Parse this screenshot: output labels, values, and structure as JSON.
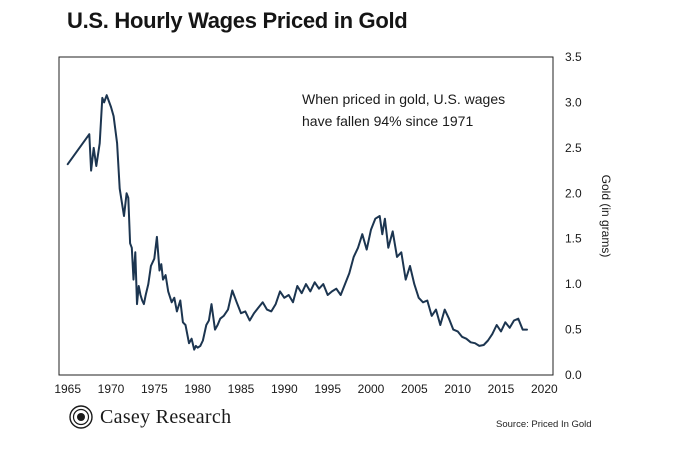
{
  "title": "U.S. Hourly Wages Priced in Gold",
  "annotation": {
    "line1": "When priced in gold, U.S. wages",
    "line2": "have fallen 94% since 1971"
  },
  "brand": {
    "name": "Casey Research",
    "icon": "casey-logo-icon"
  },
  "source": "Source: Priced In Gold",
  "colors": {
    "line": "#1c3550",
    "axis": "#222222",
    "text": "#1a1a1a"
  },
  "chart_data": {
    "type": "line",
    "title": "U.S. Hourly Wages Priced in Gold",
    "xlabel": "",
    "ylabel": "Gold (in grams)",
    "y_axis_position": "right",
    "xlim": [
      1964,
      2021
    ],
    "ylim": [
      0,
      3.5
    ],
    "xticks": [
      1965,
      1970,
      1975,
      1980,
      1985,
      1990,
      1995,
      2000,
      2005,
      2010,
      2015,
      2020
    ],
    "yticks": [
      0.0,
      0.5,
      1.0,
      1.5,
      2.0,
      2.5,
      3.0,
      3.5
    ],
    "ytick_labels": [
      "0.0",
      "0.5",
      "1.0",
      "1.5",
      "2.0",
      "2.5",
      "3.0",
      "3.5"
    ],
    "grid": false,
    "series": [
      {
        "x": [
          1965,
          1967.5,
          1967.7,
          1968.0,
          1968.3,
          1968.7,
          1969.0,
          1969.2,
          1969.5,
          1969.8,
          1970.0,
          1970.3,
          1970.7,
          1971.0,
          1971.5,
          1971.8,
          1972.0,
          1972.2,
          1972.4,
          1972.6,
          1972.8,
          1973.0,
          1973.2,
          1973.4,
          1973.6,
          1973.8,
          1974.0,
          1974.3,
          1974.6,
          1975.0,
          1975.3,
          1975.6,
          1975.8,
          1976.0,
          1976.3,
          1976.6,
          1977.0,
          1977.3,
          1977.6,
          1978.0,
          1978.3,
          1978.6,
          1979.0,
          1979.3,
          1979.6,
          1979.8,
          1980.0,
          1980.3,
          1980.6,
          1981.0,
          1981.3,
          1981.6,
          1982.0,
          1982.3,
          1982.6,
          1983.0,
          1983.5,
          1984.0,
          1984.5,
          1985.0,
          1985.5,
          1986.0,
          1986.5,
          1987.0,
          1987.5,
          1988.0,
          1988.5,
          1989.0,
          1989.5,
          1990.0,
          1990.5,
          1991.0,
          1991.5,
          1992.0,
          1992.5,
          1993.0,
          1993.5,
          1994.0,
          1994.5,
          1995.0,
          1995.5,
          1996.0,
          1996.5,
          1997.0,
          1997.5,
          1998.0,
          1998.5,
          1999.0,
          1999.5,
          2000.0,
          2000.5,
          2001.0,
          2001.3,
          2001.6,
          2002.0,
          2002.5,
          2003.0,
          2003.5,
          2004.0,
          2004.5,
          2005.0,
          2005.5,
          2006.0,
          2006.5,
          2007.0,
          2007.5,
          2008.0,
          2008.5,
          2009.0,
          2009.5,
          2010.0,
          2010.5,
          2011.0,
          2011.5,
          2012.0,
          2012.5,
          2013.0,
          2013.5,
          2014.0,
          2014.5,
          2015.0,
          2015.5,
          2016.0,
          2016.5,
          2017.0,
          2017.5,
          2018.0
        ],
        "values": [
          2.32,
          2.65,
          2.25,
          2.5,
          2.3,
          2.55,
          3.05,
          3.0,
          3.08,
          3.0,
          2.95,
          2.85,
          2.55,
          2.05,
          1.75,
          2.0,
          1.95,
          1.45,
          1.4,
          1.05,
          1.35,
          0.78,
          0.98,
          0.88,
          0.82,
          0.78,
          0.88,
          1.0,
          1.2,
          1.28,
          1.52,
          1.15,
          1.22,
          1.05,
          1.1,
          0.92,
          0.8,
          0.85,
          0.7,
          0.82,
          0.58,
          0.55,
          0.35,
          0.4,
          0.28,
          0.32,
          0.3,
          0.32,
          0.38,
          0.55,
          0.6,
          0.78,
          0.5,
          0.55,
          0.62,
          0.65,
          0.72,
          0.93,
          0.8,
          0.68,
          0.7,
          0.6,
          0.68,
          0.74,
          0.8,
          0.72,
          0.7,
          0.78,
          0.92,
          0.85,
          0.88,
          0.8,
          0.98,
          0.9,
          1.0,
          0.92,
          1.02,
          0.95,
          1.0,
          0.88,
          0.92,
          0.95,
          0.88,
          1.0,
          1.12,
          1.3,
          1.4,
          1.55,
          1.38,
          1.6,
          1.72,
          1.75,
          1.55,
          1.72,
          1.4,
          1.58,
          1.3,
          1.35,
          1.05,
          1.2,
          1.0,
          0.85,
          0.8,
          0.82,
          0.65,
          0.72,
          0.55,
          0.72,
          0.62,
          0.5,
          0.48,
          0.42,
          0.4,
          0.36,
          0.35,
          0.32,
          0.33,
          0.38,
          0.45,
          0.55,
          0.48,
          0.58,
          0.52,
          0.6,
          0.62,
          0.5,
          0.5
        ]
      }
    ],
    "annotation": "When priced in gold, U.S. wages have fallen 94% since 1971"
  }
}
